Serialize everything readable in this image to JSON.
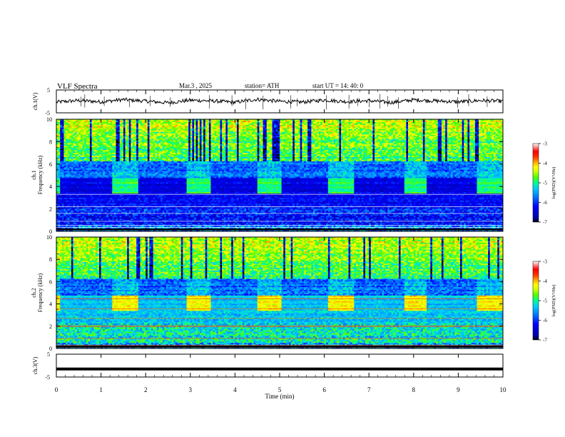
{
  "header": {
    "title": "VLF  Spectra",
    "date": "Mar.3  , 2025",
    "station": "station= ATH",
    "start": "start  UT  =    14: 40: 0"
  },
  "chart_data": [
    {
      "type": "line",
      "panel": "ch1-waveform",
      "ylabel": "ch.1(V)",
      "ylim": [
        -5,
        5
      ],
      "yticks": [
        "5",
        "-5"
      ],
      "xlim": [
        0,
        10
      ],
      "series": [
        {
          "values": [
            -0.3,
            0.4,
            -0.2,
            0.8,
            0.1,
            -0.6,
            0.5,
            0.2,
            -0.4,
            0.9,
            0.0,
            -0.3,
            0.6,
            -0.1,
            0.3,
            -0.5,
            0.7,
            0.2,
            -0.2,
            0.4,
            0.1
          ]
        }
      ],
      "color": "#000000"
    },
    {
      "type": "heatmap",
      "panel": "ch1-spectrogram",
      "ylabel": "ch.1\nFrequency (kHz)",
      "ylabel_lines": [
        "ch.1",
        "Frequency  (kHz)"
      ],
      "ylim": [
        0,
        10
      ],
      "yticks": [
        "0",
        "2",
        "4",
        "6",
        "8",
        "10"
      ],
      "xlim": [
        0,
        10
      ],
      "colorbar": {
        "label": "log(PSD)(V²/Hz)",
        "range": [
          -7,
          -3
        ],
        "ticks": [
          "-3",
          "-4",
          "-5",
          "-6",
          "-7"
        ],
        "colors": [
          "#000000",
          "#0000a0",
          "#0000ff",
          "#0078ff",
          "#00c8ff",
          "#00ff96",
          "#50ff00",
          "#c8ff00",
          "#ffff00",
          "#ffaa00",
          "#ff3200",
          "#ff0000",
          "#ff8080",
          "#ffffff"
        ]
      }
    },
    {
      "type": "heatmap",
      "panel": "ch2-spectrogram",
      "ylabel": "ch.2\nFrequency (kHz)",
      "ylabel_lines": [
        "ch.2",
        "Frequency  (kHz)"
      ],
      "ylim": [
        0,
        10
      ],
      "yticks": [
        "0",
        "2",
        "4",
        "6",
        "8",
        "10"
      ],
      "xlim": [
        0,
        10
      ],
      "colorbar": {
        "label": "log(PSD)(V²/Hz)",
        "range": [
          -7,
          -3
        ],
        "ticks": [
          "-3",
          "-4",
          "-5",
          "-6",
          "-7"
        ]
      }
    },
    {
      "type": "line",
      "panel": "ch3-waveform",
      "ylabel": "ch.3(V)",
      "ylim": [
        -5,
        5
      ],
      "yticks": [
        "5",
        "-5"
      ],
      "xlim": [
        0,
        10
      ],
      "xlabel": "Time  (min)",
      "xticks": [
        "0",
        "1",
        "2",
        "3",
        "4",
        "5",
        "6",
        "7",
        "8",
        "9",
        "10"
      ],
      "series": [
        {
          "values": [
            -1.5,
            -1.5,
            -1.5,
            -1.5,
            -1.5,
            -1.5,
            -1.5,
            -1.5,
            -1.5,
            -1.5,
            -1.5
          ]
        }
      ],
      "color": "#000000"
    }
  ]
}
